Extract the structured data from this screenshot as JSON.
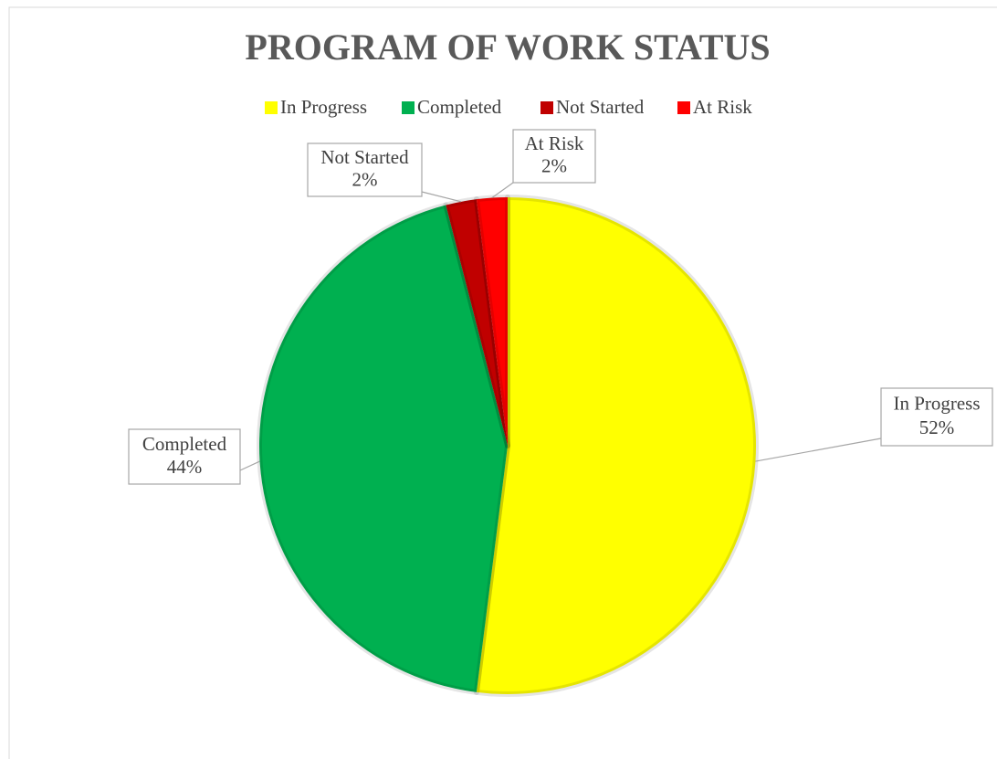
{
  "chart_data": {
    "type": "pie",
    "title": "PROGRAM OF WORK STATUS",
    "categories": [
      "In Progress",
      "Completed",
      "Not Started",
      "At Risk"
    ],
    "values": [
      52,
      44,
      2,
      2
    ],
    "value_labels": [
      "52%",
      "44%",
      "2%",
      "2%"
    ],
    "colors": [
      "#ffff00",
      "#00b050",
      "#c00000",
      "#ff0000"
    ],
    "legend": "top"
  }
}
